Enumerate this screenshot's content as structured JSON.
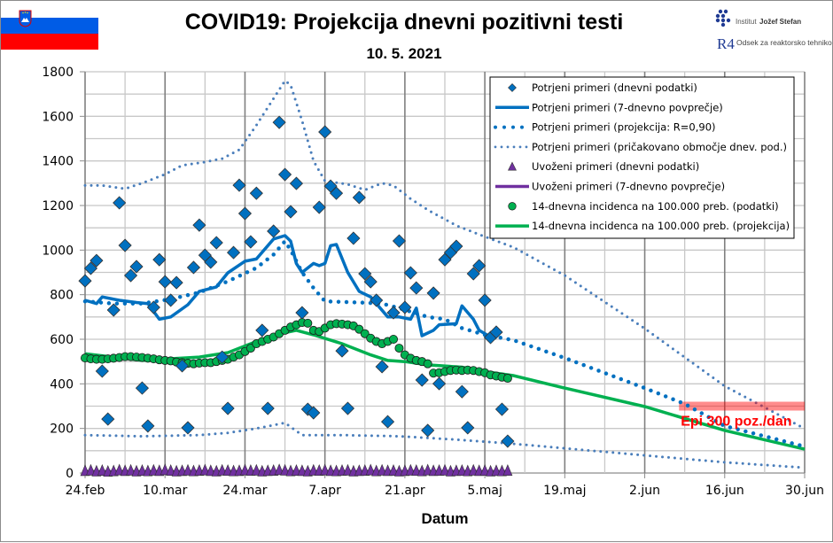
{
  "header": {
    "title": "COVID19: Projekcija dnevni pozitivni testi",
    "subtitle": "10. 5. 2021",
    "flag_icon": "slovenia-flag",
    "logos": {
      "ijs": {
        "prefix": "Institut",
        "name": "Jožef Stefan"
      },
      "r4": {
        "mark": "R4",
        "text": "Odsek za reaktorsko tehniko"
      }
    }
  },
  "colors": {
    "confirmed": "#0070c0",
    "confirmed_range": "#4a7ebb",
    "imported": "#7030a0",
    "incidence": "#00b050",
    "epi": "#ff0000"
  },
  "chart_data": {
    "type": "line",
    "title": "COVID19: Projekcija dnevni pozitivni testi",
    "subtitle": "10. 5. 2021",
    "xlabel": "Datum",
    "ylabel": "",
    "xlim": [
      "2021-02-24",
      "2021-06-30"
    ],
    "ylim": [
      0,
      1800
    ],
    "yticks": [
      0,
      200,
      400,
      600,
      800,
      1000,
      1200,
      1400,
      1600,
      1800
    ],
    "xticks": [
      {
        "date": "2021-02-24",
        "label": "24.feb"
      },
      {
        "date": "2021-03-10",
        "label": "10.mar"
      },
      {
        "date": "2021-03-24",
        "label": "24.mar"
      },
      {
        "date": "2021-04-07",
        "label": "7.apr"
      },
      {
        "date": "2021-04-21",
        "label": "21.apr"
      },
      {
        "date": "2021-05-05",
        "label": "5.maj"
      },
      {
        "date": "2021-05-19",
        "label": "19.maj"
      },
      {
        "date": "2021-06-02",
        "label": "2.jun"
      },
      {
        "date": "2021-06-16",
        "label": "16.jun"
      },
      {
        "date": "2021-06-30",
        "label": "30.jun"
      }
    ],
    "grid": true,
    "legend_position": "top-right",
    "daily_dates": [
      "2021-02-24",
      "2021-02-25",
      "2021-02-26",
      "2021-02-27",
      "2021-02-28",
      "2021-03-01",
      "2021-03-02",
      "2021-03-03",
      "2021-03-04",
      "2021-03-05",
      "2021-03-06",
      "2021-03-07",
      "2021-03-08",
      "2021-03-09",
      "2021-03-10",
      "2021-03-11",
      "2021-03-12",
      "2021-03-13",
      "2021-03-14",
      "2021-03-15",
      "2021-03-16",
      "2021-03-17",
      "2021-03-18",
      "2021-03-19",
      "2021-03-20",
      "2021-03-21",
      "2021-03-22",
      "2021-03-23",
      "2021-03-24",
      "2021-03-25",
      "2021-03-26",
      "2021-03-27",
      "2021-03-28",
      "2021-03-29",
      "2021-03-30",
      "2021-03-31",
      "2021-04-01",
      "2021-04-02",
      "2021-04-03",
      "2021-04-04",
      "2021-04-05",
      "2021-04-06",
      "2021-04-07",
      "2021-04-08",
      "2021-04-09",
      "2021-04-10",
      "2021-04-11",
      "2021-04-12",
      "2021-04-13",
      "2021-04-14",
      "2021-04-15",
      "2021-04-16",
      "2021-04-17",
      "2021-04-18",
      "2021-04-19",
      "2021-04-20",
      "2021-04-21",
      "2021-04-22",
      "2021-04-23",
      "2021-04-24",
      "2021-04-25",
      "2021-04-26",
      "2021-04-27",
      "2021-04-28",
      "2021-04-29",
      "2021-04-30",
      "2021-05-01",
      "2021-05-02",
      "2021-05-03",
      "2021-05-04",
      "2021-05-05",
      "2021-05-06",
      "2021-05-07",
      "2021-05-08",
      "2021-05-09"
    ],
    "series": [
      {
        "name": "Potrjeni primeri (dnevni podatki)",
        "kind": "diamond",
        "color": "#0070c0",
        "values": [
          862,
          918,
          953,
          457,
          242,
          731,
          1212,
          1021,
          886,
          926,
          381,
          211,
          743,
          957,
          858,
          775,
          854,
          481,
          203,
          922,
          1112,
          977,
          946,
          1033,
          520,
          290,
          989,
          1291,
          1164,
          1037,
          1255,
          640,
          290,
          1085,
          1573,
          1339,
          1172,
          1299,
          719,
          286,
          270,
          1192,
          1530,
          1287,
          1255,
          548,
          290,
          1053,
          1236,
          894,
          858,
          775,
          477,
          230,
          719,
          1041,
          743,
          898,
          830,
          417,
          191,
          807,
          401,
          957,
          989,
          1017,
          365,
          203,
          894,
          930,
          775,
          608,
          632,
          286,
          143
        ]
      },
      {
        "name": "Potrjeni primeri (7-dnevno povprečje)",
        "kind": "line",
        "color": "#0070c0",
        "points": [
          [
            "2021-02-24",
            775
          ],
          [
            "2021-02-26",
            760
          ],
          [
            "2021-02-27",
            790
          ],
          [
            "2021-03-02",
            775
          ],
          [
            "2021-03-05",
            765
          ],
          [
            "2021-03-07",
            760
          ],
          [
            "2021-03-09",
            690
          ],
          [
            "2021-03-11",
            700
          ],
          [
            "2021-03-14",
            755
          ],
          [
            "2021-03-16",
            815
          ],
          [
            "2021-03-19",
            835
          ],
          [
            "2021-03-21",
            898
          ],
          [
            "2021-03-24",
            950
          ],
          [
            "2021-03-26",
            960
          ],
          [
            "2021-03-29",
            1050
          ],
          [
            "2021-03-31",
            1065
          ],
          [
            "2021-04-01",
            1040
          ],
          [
            "2021-04-02",
            940
          ],
          [
            "2021-04-03",
            900
          ],
          [
            "2021-04-05",
            940
          ],
          [
            "2021-04-06",
            930
          ],
          [
            "2021-04-07",
            940
          ],
          [
            "2021-04-08",
            1020
          ],
          [
            "2021-04-09",
            1025
          ],
          [
            "2021-04-11",
            900
          ],
          [
            "2021-04-13",
            815
          ],
          [
            "2021-04-15",
            790
          ],
          [
            "2021-04-18",
            700
          ],
          [
            "2021-04-20",
            700
          ],
          [
            "2021-04-22",
            690
          ],
          [
            "2021-04-23",
            740
          ],
          [
            "2021-04-24",
            616
          ],
          [
            "2021-04-26",
            640
          ],
          [
            "2021-04-27",
            665
          ],
          [
            "2021-04-30",
            670
          ],
          [
            "2021-05-01",
            750
          ],
          [
            "2021-05-03",
            690
          ],
          [
            "2021-05-04",
            640
          ],
          [
            "2021-05-06",
            610
          ],
          [
            "2021-05-07",
            605
          ]
        ]
      },
      {
        "name": "Potrjeni primeri (projekcija: R=0,90)",
        "kind": "dotted-heavy",
        "color": "#0070c0",
        "points": [
          [
            "2021-02-24",
            770
          ],
          [
            "2021-03-01",
            760
          ],
          [
            "2021-03-06",
            760
          ],
          [
            "2021-03-11",
            780
          ],
          [
            "2021-03-16",
            810
          ],
          [
            "2021-03-21",
            860
          ],
          [
            "2021-03-26",
            920
          ],
          [
            "2021-03-29",
            980
          ],
          [
            "2021-03-31",
            1040
          ],
          [
            "2021-04-01",
            1000
          ],
          [
            "2021-04-03",
            900
          ],
          [
            "2021-04-05",
            830
          ],
          [
            "2021-04-07",
            770
          ],
          [
            "2021-04-13",
            765
          ],
          [
            "2021-04-17",
            760
          ],
          [
            "2021-04-20",
            740
          ],
          [
            "2021-04-25",
            700
          ],
          [
            "2021-04-28",
            690
          ],
          [
            "2021-05-01",
            650
          ],
          [
            "2021-05-05",
            620
          ],
          [
            "2021-05-10",
            596
          ],
          [
            "2021-05-19",
            516
          ],
          [
            "2021-06-02",
            381
          ],
          [
            "2021-06-09",
            310
          ],
          [
            "2021-06-16",
            211
          ],
          [
            "2021-06-30",
            119
          ]
        ]
      },
      {
        "name": "Potrjeni primeri (pričakovano območje dnev. pod.)",
        "kind": "dotted-light",
        "color": "#4a7ebb",
        "points_upper": [
          [
            "2021-02-24",
            1290
          ],
          [
            "2021-02-27",
            1290
          ],
          [
            "2021-03-03",
            1275
          ],
          [
            "2021-03-06",
            1300
          ],
          [
            "2021-03-10",
            1340
          ],
          [
            "2021-03-13",
            1380
          ],
          [
            "2021-03-17",
            1395
          ],
          [
            "2021-03-20",
            1410
          ],
          [
            "2021-03-23",
            1450
          ],
          [
            "2021-03-26",
            1560
          ],
          [
            "2021-03-29",
            1680
          ],
          [
            "2021-03-31",
            1760
          ],
          [
            "2021-04-01",
            1740
          ],
          [
            "2021-04-03",
            1580
          ],
          [
            "2021-04-05",
            1400
          ],
          [
            "2021-04-07",
            1310
          ],
          [
            "2021-04-11",
            1295
          ],
          [
            "2021-04-14",
            1270
          ],
          [
            "2021-04-17",
            1300
          ],
          [
            "2021-04-19",
            1290
          ],
          [
            "2021-04-22",
            1230
          ],
          [
            "2021-04-25",
            1180
          ],
          [
            "2021-04-30",
            1110
          ],
          [
            "2021-05-05",
            1060
          ],
          [
            "2021-05-10",
            1013
          ],
          [
            "2021-05-19",
            886
          ],
          [
            "2021-06-02",
            648
          ],
          [
            "2021-06-16",
            390
          ],
          [
            "2021-06-30",
            199
          ]
        ],
        "points_lower": [
          [
            "2021-02-24",
            170
          ],
          [
            "2021-03-06",
            165
          ],
          [
            "2021-03-16",
            170
          ],
          [
            "2021-03-21",
            180
          ],
          [
            "2021-03-26",
            200
          ],
          [
            "2021-03-31",
            225
          ],
          [
            "2021-04-03",
            170
          ],
          [
            "2021-04-10",
            170
          ],
          [
            "2021-04-20",
            165
          ],
          [
            "2021-04-30",
            150
          ],
          [
            "2021-05-10",
            131
          ],
          [
            "2021-05-19",
            111
          ],
          [
            "2021-06-02",
            79
          ],
          [
            "2021-06-16",
            48
          ],
          [
            "2021-06-30",
            24
          ]
        ]
      },
      {
        "name": "Uvoženi primeri (dnevni podatki)",
        "kind": "triangle",
        "color": "#7030a0",
        "values": [
          8,
          10,
          6,
          9,
          5,
          7,
          11,
          8,
          10,
          6,
          9,
          7,
          10,
          8,
          12,
          9,
          6,
          8,
          10,
          7,
          9,
          11,
          8,
          6,
          10,
          9,
          7,
          8,
          11,
          9,
          10,
          6,
          8,
          9,
          12,
          10,
          7,
          9,
          8,
          6,
          10,
          9,
          11,
          8,
          7,
          9,
          10,
          6,
          8,
          9,
          11,
          7,
          10,
          8,
          9,
          6,
          8,
          10,
          9,
          7,
          11,
          8,
          9,
          10,
          6,
          8,
          9,
          7,
          10,
          8,
          9,
          6,
          8,
          7,
          9
        ]
      },
      {
        "name": "Uvoženi primeri (7-dnevno povprečje)",
        "kind": "line",
        "color": "#7030a0",
        "points": [
          [
            "2021-02-24",
            8
          ],
          [
            "2021-05-09",
            8
          ]
        ]
      },
      {
        "name": "14-dnevna incidenca na 100.000 preb. (podatki)",
        "kind": "circle",
        "color": "#00b050",
        "values": [
          516,
          512,
          510,
          510,
          512,
          515,
          518,
          522,
          522,
          520,
          518,
          515,
          512,
          508,
          505,
          503,
          498,
          495,
          492,
          490,
          493,
          495,
          495,
          500,
          505,
          510,
          520,
          530,
          545,
          560,
          580,
          590,
          600,
          610,
          625,
          640,
          655,
          665,
          675,
          672,
          640,
          635,
          650,
          665,
          670,
          668,
          665,
          660,
          645,
          625,
          605,
          590,
          580,
          590,
          600,
          560,
          530,
          515,
          505,
          500,
          490,
          448,
          450,
          455,
          460,
          462,
          460,
          462,
          460,
          455,
          450,
          440,
          435,
          430,
          425
        ]
      },
      {
        "name": "14-dnevna incidenca na 100.000 preb. (projekcija)",
        "kind": "line",
        "color": "#00b050",
        "points": [
          [
            "2021-02-24",
            535
          ],
          [
            "2021-03-06",
            505
          ],
          [
            "2021-03-16",
            520
          ],
          [
            "2021-03-21",
            540
          ],
          [
            "2021-03-26",
            590
          ],
          [
            "2021-03-31",
            630
          ],
          [
            "2021-04-02",
            640
          ],
          [
            "2021-04-05",
            620
          ],
          [
            "2021-04-10",
            580
          ],
          [
            "2021-04-15",
            530
          ],
          [
            "2021-04-18",
            505
          ],
          [
            "2021-04-21",
            500
          ],
          [
            "2021-04-25",
            485
          ],
          [
            "2021-05-01",
            475
          ],
          [
            "2021-05-05",
            455
          ],
          [
            "2021-05-10",
            437
          ],
          [
            "2021-05-19",
            381
          ],
          [
            "2021-06-02",
            298
          ],
          [
            "2021-06-16",
            191
          ],
          [
            "2021-06-30",
            107
          ]
        ]
      }
    ],
    "annotations": [
      {
        "text": "Epi 300 poz./dan",
        "value": 300,
        "from": "2021-06-08",
        "to": "2021-06-30",
        "color": "#ff0000"
      }
    ]
  }
}
